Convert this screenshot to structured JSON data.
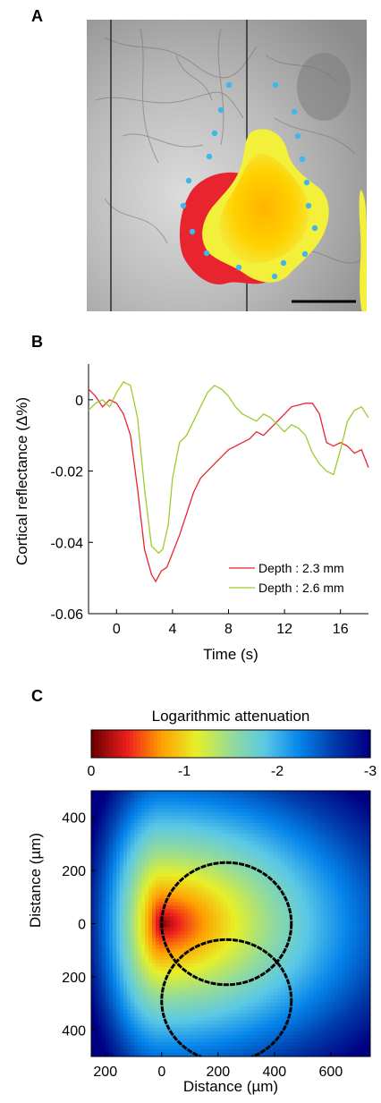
{
  "panels": {
    "a": {
      "label": "A",
      "colors": {
        "red": "#e8242e",
        "yellow_orange": "#ffc400",
        "yellow": "#f2f03a",
        "dots": "#3fb6ee",
        "scale_bar": "#000000"
      }
    },
    "b": {
      "label": "B"
    },
    "c": {
      "label": "C"
    }
  },
  "chart_data": [
    {
      "type": "line",
      "panel": "B",
      "title": "",
      "xlabel": "Time (s)",
      "ylabel": "Cortical reflectance (Δ%)",
      "xlim": [
        -2,
        18
      ],
      "ylim": [
        -0.06,
        0.01
      ],
      "xticks": [
        0,
        4,
        8,
        12,
        16
      ],
      "yticks": [
        0,
        -0.02,
        -0.04,
        -0.06
      ],
      "ytick_labels": [
        "0",
        "-0.02",
        "-0.04",
        "-0.06"
      ],
      "legend_position": "bottom-right",
      "series": [
        {
          "name": "Depth : 2.3 mm",
          "color": "#e8242e",
          "points": [
            [
              -2,
              0.003
            ],
            [
              -1.5,
              0.001
            ],
            [
              -1,
              -0.002
            ],
            [
              -0.5,
              0.0
            ],
            [
              0,
              -0.001
            ],
            [
              0.5,
              -0.004
            ],
            [
              1,
              -0.01
            ],
            [
              1.5,
              -0.025
            ],
            [
              2,
              -0.042
            ],
            [
              2.5,
              -0.049
            ],
            [
              2.8,
              -0.051
            ],
            [
              3.2,
              -0.048
            ],
            [
              3.6,
              -0.047
            ],
            [
              4,
              -0.043
            ],
            [
              4.5,
              -0.038
            ],
            [
              5,
              -0.032
            ],
            [
              5.5,
              -0.026
            ],
            [
              6,
              -0.022
            ],
            [
              6.5,
              -0.02
            ],
            [
              7,
              -0.018
            ],
            [
              7.5,
              -0.016
            ],
            [
              8,
              -0.014
            ],
            [
              8.5,
              -0.013
            ],
            [
              9,
              -0.012
            ],
            [
              9.5,
              -0.011
            ],
            [
              10,
              -0.009
            ],
            [
              10.5,
              -0.01
            ],
            [
              11,
              -0.008
            ],
            [
              11.5,
              -0.006
            ],
            [
              12,
              -0.004
            ],
            [
              12.5,
              -0.002
            ],
            [
              13,
              -0.0015
            ],
            [
              13.5,
              -0.001
            ],
            [
              14,
              -0.001
            ],
            [
              14.5,
              -0.004
            ],
            [
              15,
              -0.012
            ],
            [
              15.5,
              -0.013
            ],
            [
              16,
              -0.012
            ],
            [
              16.5,
              -0.013
            ],
            [
              17,
              -0.015
            ],
            [
              17.5,
              -0.014
            ],
            [
              18,
              -0.019
            ]
          ]
        },
        {
          "name": "Depth : 2.6 mm",
          "color": "#9bcc2a",
          "points": [
            [
              -2,
              -0.003
            ],
            [
              -1.5,
              -0.001
            ],
            [
              -1,
              0.0
            ],
            [
              -0.5,
              -0.002
            ],
            [
              0,
              0.002
            ],
            [
              0.5,
              0.005
            ],
            [
              1,
              0.004
            ],
            [
              1.5,
              -0.005
            ],
            [
              2,
              -0.025
            ],
            [
              2.5,
              -0.041
            ],
            [
              3,
              -0.043
            ],
            [
              3.3,
              -0.042
            ],
            [
              3.7,
              -0.035
            ],
            [
              4,
              -0.022
            ],
            [
              4.5,
              -0.012
            ],
            [
              5,
              -0.01
            ],
            [
              5.5,
              -0.006
            ],
            [
              6,
              -0.002
            ],
            [
              6.5,
              0.002
            ],
            [
              7,
              0.004
            ],
            [
              7.5,
              0.003
            ],
            [
              8,
              0.001
            ],
            [
              8.5,
              -0.002
            ],
            [
              9,
              -0.004
            ],
            [
              9.5,
              -0.005
            ],
            [
              10,
              -0.006
            ],
            [
              10.5,
              -0.004
            ],
            [
              11,
              -0.005
            ],
            [
              11.5,
              -0.007
            ],
            [
              12,
              -0.009
            ],
            [
              12.5,
              -0.007
            ],
            [
              13,
              -0.008
            ],
            [
              13.5,
              -0.01
            ],
            [
              14,
              -0.015
            ],
            [
              14.5,
              -0.018
            ],
            [
              15,
              -0.02
            ],
            [
              15.5,
              -0.021
            ],
            [
              16,
              -0.014
            ],
            [
              16.5,
              -0.006
            ],
            [
              17,
              -0.003
            ],
            [
              17.5,
              -0.002
            ],
            [
              18,
              -0.005
            ]
          ]
        }
      ]
    },
    {
      "type": "heatmap",
      "panel": "C",
      "colorbar_title": "Logarithmic attenuation",
      "colorbar_range": [
        0,
        -3
      ],
      "colorbar_ticks": [
        "0",
        "-1",
        "-2",
        "-3"
      ],
      "colormap": "jet (reversed)",
      "xlabel": "Distance (µm)",
      "ylabel": "Distance (µm)",
      "xlim": [
        -250,
        740
      ],
      "ylim": [
        -500,
        500
      ],
      "xticks": [
        -200,
        0,
        200,
        400,
        600
      ],
      "xtick_labels": [
        "200",
        "0",
        "200",
        "400",
        "600"
      ],
      "yticks": [
        400,
        200,
        0,
        -200,
        -400
      ],
      "ytick_labels": [
        "400",
        "200",
        "0",
        "200",
        "400"
      ],
      "source": {
        "x": 0,
        "y": 0
      },
      "contours": [
        {
          "center": [
            230,
            0
          ],
          "rx": 230,
          "ry": 230,
          "color": "#000000"
        },
        {
          "center": [
            230,
            -290
          ],
          "rx": 230,
          "ry": 230,
          "color": "#000000"
        }
      ]
    }
  ]
}
